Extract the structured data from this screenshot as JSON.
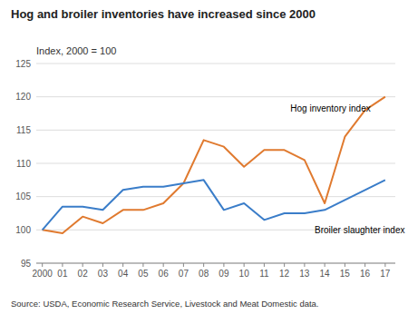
{
  "chart_data": {
    "type": "line",
    "title": "Hog and broiler inventories have increased since 2000",
    "ylabel": "Index, 2000 = 100",
    "source": "Source: USDA, Economic Research Service, Livestock and Meat Domestic data.",
    "x": [
      2000,
      2001,
      2002,
      2003,
      2004,
      2005,
      2006,
      2007,
      2008,
      2009,
      2010,
      2011,
      2012,
      2013,
      2014,
      2015,
      2016,
      2017
    ],
    "series": [
      {
        "color": "#E07A2F",
        "values": [
          100,
          99.5,
          102,
          101,
          103,
          103,
          104,
          107,
          113.5,
          112.5,
          109.5,
          112,
          112,
          110.5,
          104,
          114,
          118,
          120
        ]
      },
      {
        "color": "#3A7DC9",
        "values": [
          100,
          103.5,
          103.5,
          103,
          106,
          106.5,
          106.5,
          107,
          107.5,
          103,
          104,
          101.5,
          102.5,
          102.5,
          103,
          104.5,
          106,
          107.5
        ]
      }
    ],
    "annotations": [
      {
        "text": "Hog inventory index",
        "x": 2012.3,
        "y": 117.5
      },
      {
        "text": "Broiler slaughter index",
        "x": 2013.5,
        "y": 100.8
      }
    ],
    "xlim": [
      1999.7,
      2017.5
    ],
    "xticks": [
      2000,
      {
        "value": 2001,
        "label": "01"
      },
      {
        "value": 2002,
        "label": "02"
      },
      {
        "value": 2003,
        "label": "03"
      },
      {
        "value": 2004,
        "label": "04"
      },
      {
        "value": 2005,
        "label": "05"
      },
      {
        "value": 2006,
        "label": "06"
      },
      {
        "value": 2007,
        "label": "07"
      },
      {
        "value": 2008,
        "label": "08"
      },
      {
        "value": 2009,
        "label": "09"
      },
      {
        "value": 2010,
        "label": "10"
      },
      {
        "value": 2011,
        "label": "11"
      },
      {
        "value": 2012,
        "label": "12"
      },
      {
        "value": 2013,
        "label": "13"
      },
      {
        "value": 2014,
        "label": "14"
      },
      {
        "value": 2015,
        "label": "15"
      },
      {
        "value": 2016,
        "label": "16"
      },
      {
        "value": 2017,
        "label": "17"
      }
    ],
    "ylim": [
      95,
      125
    ],
    "yticks": [
      95,
      100,
      105,
      110,
      115,
      120,
      125
    ],
    "grid": true
  }
}
